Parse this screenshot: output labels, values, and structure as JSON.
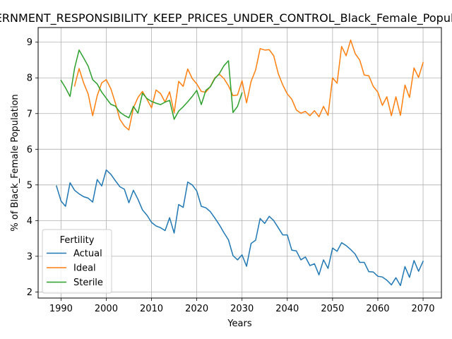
{
  "chart_data": {
    "type": "line",
    "title": "GOVERNMENT_RESPONSIBILITY_KEEP_PRICES_UNDER_CONTROL_Black_Female_Population",
    "xlabel": "Years",
    "ylabel": "% of Black_Female Population",
    "xlim": [
      1984.95,
      2074.05
    ],
    "ylim": [
      1.83,
      9.41
    ],
    "xticks": [
      1990,
      2000,
      2010,
      2020,
      2030,
      2040,
      2050,
      2060,
      2070
    ],
    "yticks": [
      2,
      3,
      4,
      5,
      6,
      7,
      8,
      9
    ],
    "grid": true,
    "legend": {
      "title": "Fertility",
      "placement": "lower-left"
    },
    "series": [
      {
        "name": "Actual",
        "color": "#1f77b4",
        "x": [
          1989,
          1990,
          1991,
          1992,
          1993,
          1994,
          1995,
          1996,
          1997,
          1998,
          1999,
          2000,
          2001,
          2002,
          2003,
          2004,
          2005,
          2006,
          2007,
          2008,
          2009,
          2010,
          2011,
          2012,
          2013,
          2014,
          2015,
          2016,
          2017,
          2018,
          2019,
          2020,
          2021,
          2022,
          2023,
          2024,
          2025,
          2026,
          2027,
          2028,
          2029,
          2030,
          2031,
          2032,
          2033,
          2034,
          2035,
          2036,
          2037,
          2038,
          2039,
          2040,
          2041,
          2042,
          2043,
          2044,
          2045,
          2046,
          2047,
          2048,
          2049,
          2050,
          2051,
          2052,
          2053,
          2054,
          2055,
          2056,
          2057,
          2058,
          2059,
          2060,
          2061,
          2062,
          2063,
          2064,
          2065,
          2066,
          2067,
          2068,
          2069,
          2070
        ],
        "values": [
          4.97,
          4.55,
          4.4,
          5.06,
          4.85,
          4.75,
          4.67,
          4.63,
          4.52,
          5.15,
          4.97,
          5.42,
          5.3,
          5.12,
          4.95,
          4.88,
          4.5,
          4.85,
          4.6,
          4.3,
          4.15,
          3.95,
          3.85,
          3.8,
          3.72,
          4.08,
          3.65,
          4.45,
          4.37,
          5.08,
          5.0,
          4.83,
          4.4,
          4.36,
          4.25,
          4.07,
          3.88,
          3.66,
          3.46,
          3.02,
          2.9,
          3.04,
          2.72,
          3.36,
          3.45,
          4.06,
          3.92,
          4.12,
          4.0,
          3.8,
          3.6,
          3.6,
          3.17,
          3.15,
          2.9,
          2.98,
          2.74,
          2.79,
          2.48,
          2.9,
          2.66,
          3.23,
          3.14,
          3.38,
          3.3,
          3.19,
          3.06,
          2.83,
          2.83,
          2.57,
          2.56,
          2.44,
          2.42,
          2.33,
          2.2,
          2.4,
          2.18,
          2.71,
          2.41,
          2.88,
          2.58,
          2.86
        ]
      },
      {
        "name": "Ideal",
        "color": "#ff7f0e",
        "x": [
          1993,
          1994,
          1995,
          1996,
          1997,
          1998,
          1999,
          2000,
          2001,
          2002,
          2003,
          2004,
          2005,
          2006,
          2007,
          2008,
          2009,
          2010,
          2011,
          2012,
          2013,
          2014,
          2015,
          2016,
          2017,
          2018,
          2019,
          2020,
          2021,
          2022,
          2023,
          2024,
          2025,
          2026,
          2027,
          2028,
          2029,
          2030,
          2031,
          2032,
          2033,
          2034,
          2035,
          2036,
          2037,
          2038,
          2039,
          2040,
          2041,
          2042,
          2043,
          2044,
          2045,
          2046,
          2047,
          2048,
          2049,
          2050,
          2051,
          2052,
          2053,
          2054,
          2055,
          2056,
          2057,
          2058,
          2059,
          2060,
          2061,
          2062,
          2063,
          2064,
          2065,
          2066,
          2067,
          2068,
          2069,
          2070
        ],
        "values": [
          7.77,
          8.26,
          7.86,
          7.55,
          6.94,
          7.5,
          7.86,
          7.95,
          7.7,
          7.3,
          6.84,
          6.65,
          6.54,
          7.16,
          7.45,
          7.62,
          7.4,
          7.16,
          7.66,
          7.56,
          7.32,
          7.61,
          7.02,
          7.9,
          7.76,
          8.25,
          7.98,
          7.83,
          7.62,
          7.6,
          7.76,
          8.0,
          8.1,
          7.98,
          7.78,
          7.5,
          7.52,
          7.92,
          7.3,
          7.9,
          8.22,
          8.82,
          8.78,
          8.79,
          8.62,
          8.12,
          7.8,
          7.55,
          7.4,
          7.1,
          7.01,
          7.06,
          6.94,
          7.08,
          6.91,
          7.2,
          6.95,
          8.0,
          7.85,
          8.88,
          8.62,
          9.06,
          8.68,
          8.5,
          8.08,
          8.06,
          7.76,
          7.6,
          7.23,
          7.47,
          6.94,
          7.47,
          6.95,
          7.8,
          7.45,
          8.28,
          8.01,
          8.43
        ]
      },
      {
        "name": "Sterile",
        "color": "#2ca02c",
        "x": [
          1990,
          1991,
          1992,
          1993,
          1994,
          1995,
          1996,
          1997,
          1998,
          1999,
          2000,
          2001,
          2002,
          2003,
          2004,
          2005,
          2006,
          2007,
          2008,
          2009,
          2010,
          2011,
          2012,
          2013,
          2014,
          2015,
          2016,
          2017,
          2018,
          2019,
          2020,
          2021,
          2022,
          2023,
          2024,
          2025,
          2026,
          2027,
          2028,
          2029,
          2030
        ],
        "values": [
          7.93,
          7.72,
          7.48,
          8.27,
          8.78,
          8.56,
          8.33,
          7.95,
          7.83,
          7.6,
          7.43,
          7.26,
          7.21,
          7.04,
          6.95,
          6.88,
          7.2,
          7.01,
          7.57,
          7.42,
          7.34,
          7.29,
          7.25,
          7.32,
          7.37,
          6.84,
          7.07,
          7.19,
          7.33,
          7.48,
          7.65,
          7.25,
          7.65,
          7.75,
          7.98,
          8.12,
          8.34,
          8.48,
          7.03,
          7.2,
          7.58
        ]
      }
    ]
  }
}
